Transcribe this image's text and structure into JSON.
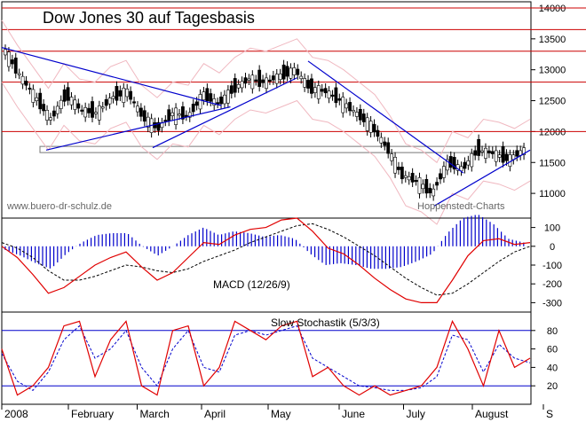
{
  "chart_data": [
    {
      "type": "candlestick",
      "title": "Dow Jones 30 auf Tagesbasis",
      "watermark_left": "www.buero-dr-schulz.de",
      "watermark_right": "Hoppenstedt-Charts",
      "ylim": [
        10600,
        14100
      ],
      "yticks": [
        11000,
        11500,
        12000,
        12500,
        13000,
        13500,
        14000
      ],
      "horizontal_levels": [
        14000,
        13650,
        13300,
        12800,
        12000
      ],
      "support_band": [
        11660,
        11760
      ],
      "trendlines": [
        {
          "from": [
            "2008-01-02",
            13360
          ],
          "to": [
            "2008-04-10",
            12420
          ]
        },
        {
          "from": [
            "2008-01-22",
            11700
          ],
          "to": [
            "2008-04-14",
            12400
          ]
        },
        {
          "from": [
            "2008-03-10",
            11740
          ],
          "to": [
            "2008-05-14",
            12870
          ]
        },
        {
          "from": [
            "2008-05-19",
            13140
          ],
          "to": [
            "2008-07-28",
            11330
          ]
        },
        {
          "from": [
            "2008-07-15",
            10800
          ],
          "to": [
            "2008-08-27",
            11700
          ]
        }
      ],
      "x_dates": [
        "2008-01-02",
        "2008-01-09",
        "2008-01-16",
        "2008-01-23",
        "2008-01-30",
        "2008-02-06",
        "2008-02-13",
        "2008-02-20",
        "2008-02-27",
        "2008-03-05",
        "2008-03-12",
        "2008-03-19",
        "2008-03-26",
        "2008-04-02",
        "2008-04-09",
        "2008-04-16",
        "2008-04-23",
        "2008-04-30",
        "2008-05-07",
        "2008-05-14",
        "2008-05-21",
        "2008-05-28",
        "2008-06-04",
        "2008-06-11",
        "2008-06-18",
        "2008-06-25",
        "2008-07-02",
        "2008-07-09",
        "2008-07-16",
        "2008-07-23",
        "2008-07-30",
        "2008-08-06",
        "2008-08-13",
        "2008-08-20",
        "2008-08-27"
      ],
      "close": [
        13300,
        12900,
        12550,
        12200,
        12600,
        12350,
        12300,
        12550,
        12650,
        12250,
        12050,
        12300,
        12250,
        12600,
        12450,
        12700,
        12850,
        12800,
        12900,
        13000,
        12700,
        12650,
        12500,
        12300,
        12100,
        11750,
        11300,
        11200,
        11000,
        11500,
        11400,
        11700,
        11650,
        11550,
        11700
      ]
    },
    {
      "type": "line",
      "label": "MACD (12/26/9)",
      "ylim": [
        -350,
        150
      ],
      "yticks": [
        100,
        0,
        -100,
        -200,
        -300
      ],
      "series": [
        {
          "color": "#e00000",
          "values": [
            0,
            -60,
            -150,
            -250,
            -220,
            -160,
            -100,
            -60,
            -30,
            -110,
            -180,
            -140,
            -60,
            20,
            10,
            60,
            90,
            100,
            140,
            150,
            80,
            -10,
            -40,
            -100,
            -170,
            -230,
            -280,
            -300,
            -300,
            -180,
            -50,
            30,
            40,
            10,
            20
          ]
        },
        {
          "color": "#000000",
          "values": [
            20,
            -10,
            -60,
            -130,
            -180,
            -180,
            -160,
            -130,
            -100,
            -110,
            -130,
            -140,
            -120,
            -80,
            -50,
            -20,
            20,
            50,
            80,
            110,
            120,
            90,
            50,
            0,
            -50,
            -110,
            -170,
            -220,
            -260,
            -250,
            -200,
            -140,
            -80,
            -30,
            0
          ]
        },
        {
          "color": "#0000cc",
          "values": [
            -20,
            -50,
            -90,
            -120,
            -40,
            20,
            60,
            70,
            70,
            0,
            -50,
            0,
            60,
            100,
            60,
            80,
            70,
            50,
            60,
            40,
            -40,
            -100,
            -90,
            -100,
            -120,
            -120,
            -110,
            -80,
            -40,
            70,
            150,
            170,
            120,
            40,
            20
          ]
        }
      ]
    },
    {
      "type": "line",
      "label": "Slow Stochastik (5/3/3)",
      "ylim": [
        0,
        100
      ],
      "yticks": [
        80,
        60,
        40,
        20
      ],
      "levels": [
        80,
        20
      ],
      "series": [
        {
          "color": "#e00000",
          "values": [
            60,
            10,
            20,
            40,
            85,
            90,
            30,
            70,
            90,
            20,
            10,
            80,
            85,
            20,
            40,
            90,
            80,
            70,
            85,
            90,
            30,
            40,
            20,
            10,
            20,
            10,
            15,
            20,
            40,
            90,
            60,
            20,
            80,
            40,
            50
          ]
        },
        {
          "color": "#0000cc",
          "values": [
            55,
            25,
            15,
            35,
            70,
            85,
            50,
            60,
            80,
            40,
            20,
            60,
            80,
            40,
            35,
            75,
            80,
            75,
            80,
            85,
            50,
            40,
            30,
            20,
            18,
            15,
            15,
            18,
            30,
            75,
            70,
            35,
            65,
            50,
            45
          ]
        }
      ]
    }
  ],
  "x_axis": {
    "labels": [
      "2008",
      "February",
      "March",
      "April",
      "May",
      "June",
      "July",
      "August",
      "S"
    ],
    "dates": [
      "2008-01-02",
      "2008-02-01",
      "2008-03-03",
      "2008-04-01",
      "2008-05-01",
      "2008-06-02",
      "2008-07-01",
      "2008-08-01",
      "2008-09-02"
    ]
  }
}
